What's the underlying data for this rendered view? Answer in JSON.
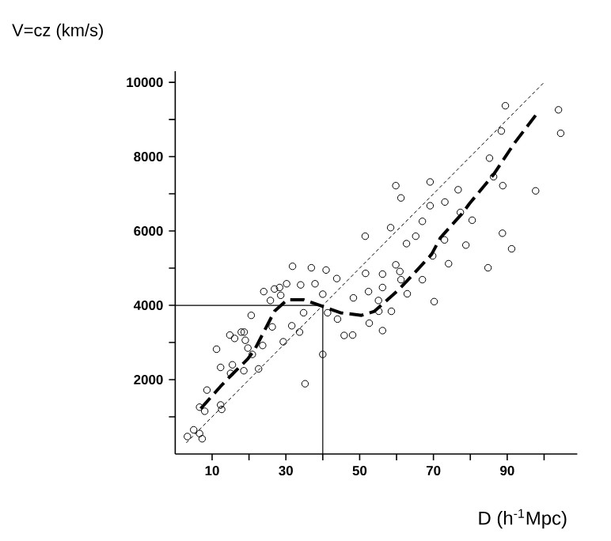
{
  "chart_data": {
    "type": "scatter",
    "xlabel": "D (h$^{-1}$Mpc)",
    "ylabel": "V=cz (km/s)",
    "xlim": [
      0,
      109
    ],
    "ylim": [
      0,
      10300
    ],
    "xticks": [
      10,
      {
        "value": 20,
        "label": null
      },
      30,
      {
        "value": 40,
        "label": null
      },
      50,
      {
        "value": 60,
        "label": null
      },
      70,
      {
        "value": 80,
        "label": null
      },
      90,
      {
        "value": 100,
        "label": null
      }
    ],
    "yticks": [
      {
        "value": 1000,
        "label": null
      },
      2000,
      {
        "value": 3000,
        "label": null
      },
      4000,
      {
        "value": 5000,
        "label": null
      },
      6000,
      {
        "value": 7000,
        "label": null
      },
      8000,
      {
        "value": 9000,
        "label": null
      },
      10000
    ],
    "grid": false,
    "ref_lines": [
      {
        "axis": "x",
        "value": 40,
        "color": "#000000"
      },
      {
        "axis": "y",
        "value": 4000,
        "color": "#000000"
      }
    ],
    "series": [
      {
        "color": "#000000",
        "marker": "circle",
        "x": [
          3.3,
          5.0,
          6.6,
          7.3,
          6.6,
          8.0,
          8.6,
          12.3,
          12.6,
          11.2,
          12.3,
          15.0,
          15.5,
          14.8,
          16.1,
          17.9,
          18.7,
          19.0,
          19.7,
          20.9,
          20.6,
          18.6,
          22.6,
          23.7,
          24.0,
          26.3,
          26.9,
          25.8,
          28.3,
          28.6,
          30.2,
          31.8,
          29.3,
          31.6,
          33.7,
          34.0,
          34.8,
          35.2,
          36.9,
          37.9,
          40.0,
          40.0,
          40.9,
          41.3,
          43.8,
          44.0,
          45.8,
          51.5,
          89.5,
          103.9,
          104.5,
          88.4,
          85.2,
          86.3,
          88.8,
          97.7,
          76.7,
          59.8,
          61.2,
          69.1,
          73.1,
          69.1,
          67.0,
          65.2,
          58.4,
          77.3,
          80.5,
          88.7,
          62.7,
          73.0,
          78.8,
          91.2,
          51.6,
          56.2,
          59.8,
          60.9,
          61.2,
          69.8,
          74.1,
          84.8,
          67.0,
          62.9,
          48.3,
          52.4,
          56.2,
          55.1,
          55.2,
          58.6,
          70.2,
          52.6,
          56.2,
          48.1
        ],
        "values": [
          470,
          650,
          550,
          410,
          1260,
          1150,
          1720,
          1320,
          1200,
          2820,
          2330,
          2170,
          2400,
          3200,
          3110,
          3280,
          3280,
          3060,
          2850,
          2680,
          3730,
          2240,
          2290,
          2920,
          4370,
          3420,
          4440,
          4130,
          4480,
          4270,
          4580,
          5050,
          3020,
          3450,
          3280,
          4550,
          3800,
          1890,
          5010,
          4580,
          4300,
          2680,
          4950,
          3800,
          4720,
          3630,
          3190,
          5860,
          9370,
          9260,
          8630,
          8690,
          7960,
          7460,
          7220,
          7080,
          7110,
          7220,
          6890,
          7320,
          6780,
          6680,
          6260,
          5860,
          6090,
          6500,
          6290,
          5940,
          5660,
          5760,
          5620,
          5520,
          4860,
          4840,
          5090,
          4910,
          4690,
          5330,
          5120,
          5010,
          4690,
          4310,
          4200,
          4370,
          4480,
          4130,
          3840,
          3840,
          4100,
          3520,
          3320,
          3200
        ]
      },
      {
        "type": "line",
        "color": "#000000",
        "line_style": "dashed",
        "marker": "none",
        "x": [
          3,
          100
        ],
        "values": [
          300,
          10000
        ]
      },
      {
        "type": "line",
        "color": "#000000",
        "line_style": "dashed",
        "marker": "none",
        "x": [
          6.9,
          12.3,
          14.7,
          19.7,
          21.6,
          26.9,
          30.4,
          34.8,
          39.7,
          44.8,
          50.5,
          54.0,
          60.5,
          63.8,
          69.5,
          71.9,
          77.7,
          79.8,
          86.3,
          92.0,
          97.7
        ],
        "values": [
          1220,
          1820,
          2070,
          2560,
          2820,
          3840,
          4150,
          4150,
          3980,
          3800,
          3730,
          3840,
          4410,
          4760,
          5370,
          5820,
          6460,
          6740,
          7520,
          8370,
          9110
        ]
      }
    ]
  }
}
